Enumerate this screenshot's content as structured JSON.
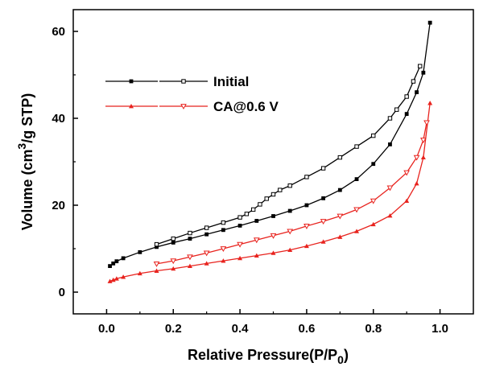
{
  "chart_data": {
    "type": "line",
    "title": "",
    "xlabel": "Relative Pressure",
    "xlabel_paren": "(P/P",
    "xlabel_sub": "0",
    "xlabel_close": ")",
    "ylabel_pre": "Volume (cm",
    "ylabel_sup": "3",
    "ylabel_post": "/g STP)",
    "xlim": [
      -0.1,
      1.1
    ],
    "ylim": [
      -5,
      65
    ],
    "xticks": [
      0.0,
      0.2,
      0.4,
      0.6,
      0.8,
      1.0
    ],
    "xtick_labels": [
      "0.0",
      "0.2",
      "0.4",
      "0.6",
      "0.8",
      "1.0"
    ],
    "yticks": [
      0,
      20,
      40,
      60
    ],
    "ytick_labels": [
      "0",
      "20",
      "40",
      "60"
    ],
    "grid": false,
    "legend_position": "top-left",
    "series": [
      {
        "name": "Initial",
        "color": "#000000",
        "adsorption": {
          "x": [
            0.01,
            0.02,
            0.03,
            0.05,
            0.1,
            0.15,
            0.2,
            0.25,
            0.3,
            0.35,
            0.4,
            0.45,
            0.5,
            0.55,
            0.6,
            0.65,
            0.7,
            0.75,
            0.8,
            0.85,
            0.9,
            0.93,
            0.95,
            0.97
          ],
          "y": [
            6.0,
            6.6,
            7.1,
            7.8,
            9.2,
            10.4,
            11.4,
            12.3,
            13.3,
            14.3,
            15.3,
            16.4,
            17.5,
            18.7,
            20.0,
            21.6,
            23.5,
            26.0,
            29.5,
            34.0,
            41.0,
            46.0,
            50.5,
            62.0
          ]
        },
        "desorption": {
          "x": [
            0.94,
            0.92,
            0.9,
            0.87,
            0.85,
            0.8,
            0.75,
            0.7,
            0.65,
            0.6,
            0.55,
            0.52,
            0.5,
            0.48,
            0.46,
            0.44,
            0.42,
            0.4,
            0.35,
            0.3,
            0.25,
            0.2,
            0.15
          ],
          "y": [
            52.0,
            48.5,
            45.0,
            42.0,
            40.0,
            36.0,
            33.5,
            31.0,
            28.5,
            26.5,
            24.5,
            23.5,
            22.5,
            21.5,
            20.2,
            19.0,
            18.0,
            17.2,
            16.0,
            14.8,
            13.6,
            12.3,
            11.0
          ]
        }
      },
      {
        "name": "CA@0.6 V",
        "color": "#e8231e",
        "adsorption": {
          "x": [
            0.01,
            0.02,
            0.03,
            0.05,
            0.1,
            0.15,
            0.2,
            0.25,
            0.3,
            0.35,
            0.4,
            0.45,
            0.5,
            0.55,
            0.6,
            0.65,
            0.7,
            0.75,
            0.8,
            0.85,
            0.9,
            0.93,
            0.95,
            0.97
          ],
          "y": [
            2.5,
            2.8,
            3.1,
            3.5,
            4.3,
            4.9,
            5.4,
            6.0,
            6.6,
            7.2,
            7.8,
            8.4,
            9.0,
            9.7,
            10.6,
            11.6,
            12.7,
            14.0,
            15.6,
            17.6,
            21.0,
            25.0,
            31.0,
            43.5
          ]
        },
        "desorption": {
          "x": [
            0.96,
            0.95,
            0.93,
            0.9,
            0.85,
            0.8,
            0.75,
            0.7,
            0.65,
            0.6,
            0.55,
            0.5,
            0.45,
            0.4,
            0.35,
            0.3,
            0.25,
            0.2,
            0.15
          ],
          "y": [
            39.0,
            35.0,
            31.0,
            27.5,
            24.0,
            21.0,
            19.0,
            17.5,
            16.3,
            15.2,
            14.0,
            13.0,
            12.0,
            11.0,
            10.0,
            9.0,
            8.1,
            7.2,
            6.5
          ]
        }
      }
    ]
  }
}
